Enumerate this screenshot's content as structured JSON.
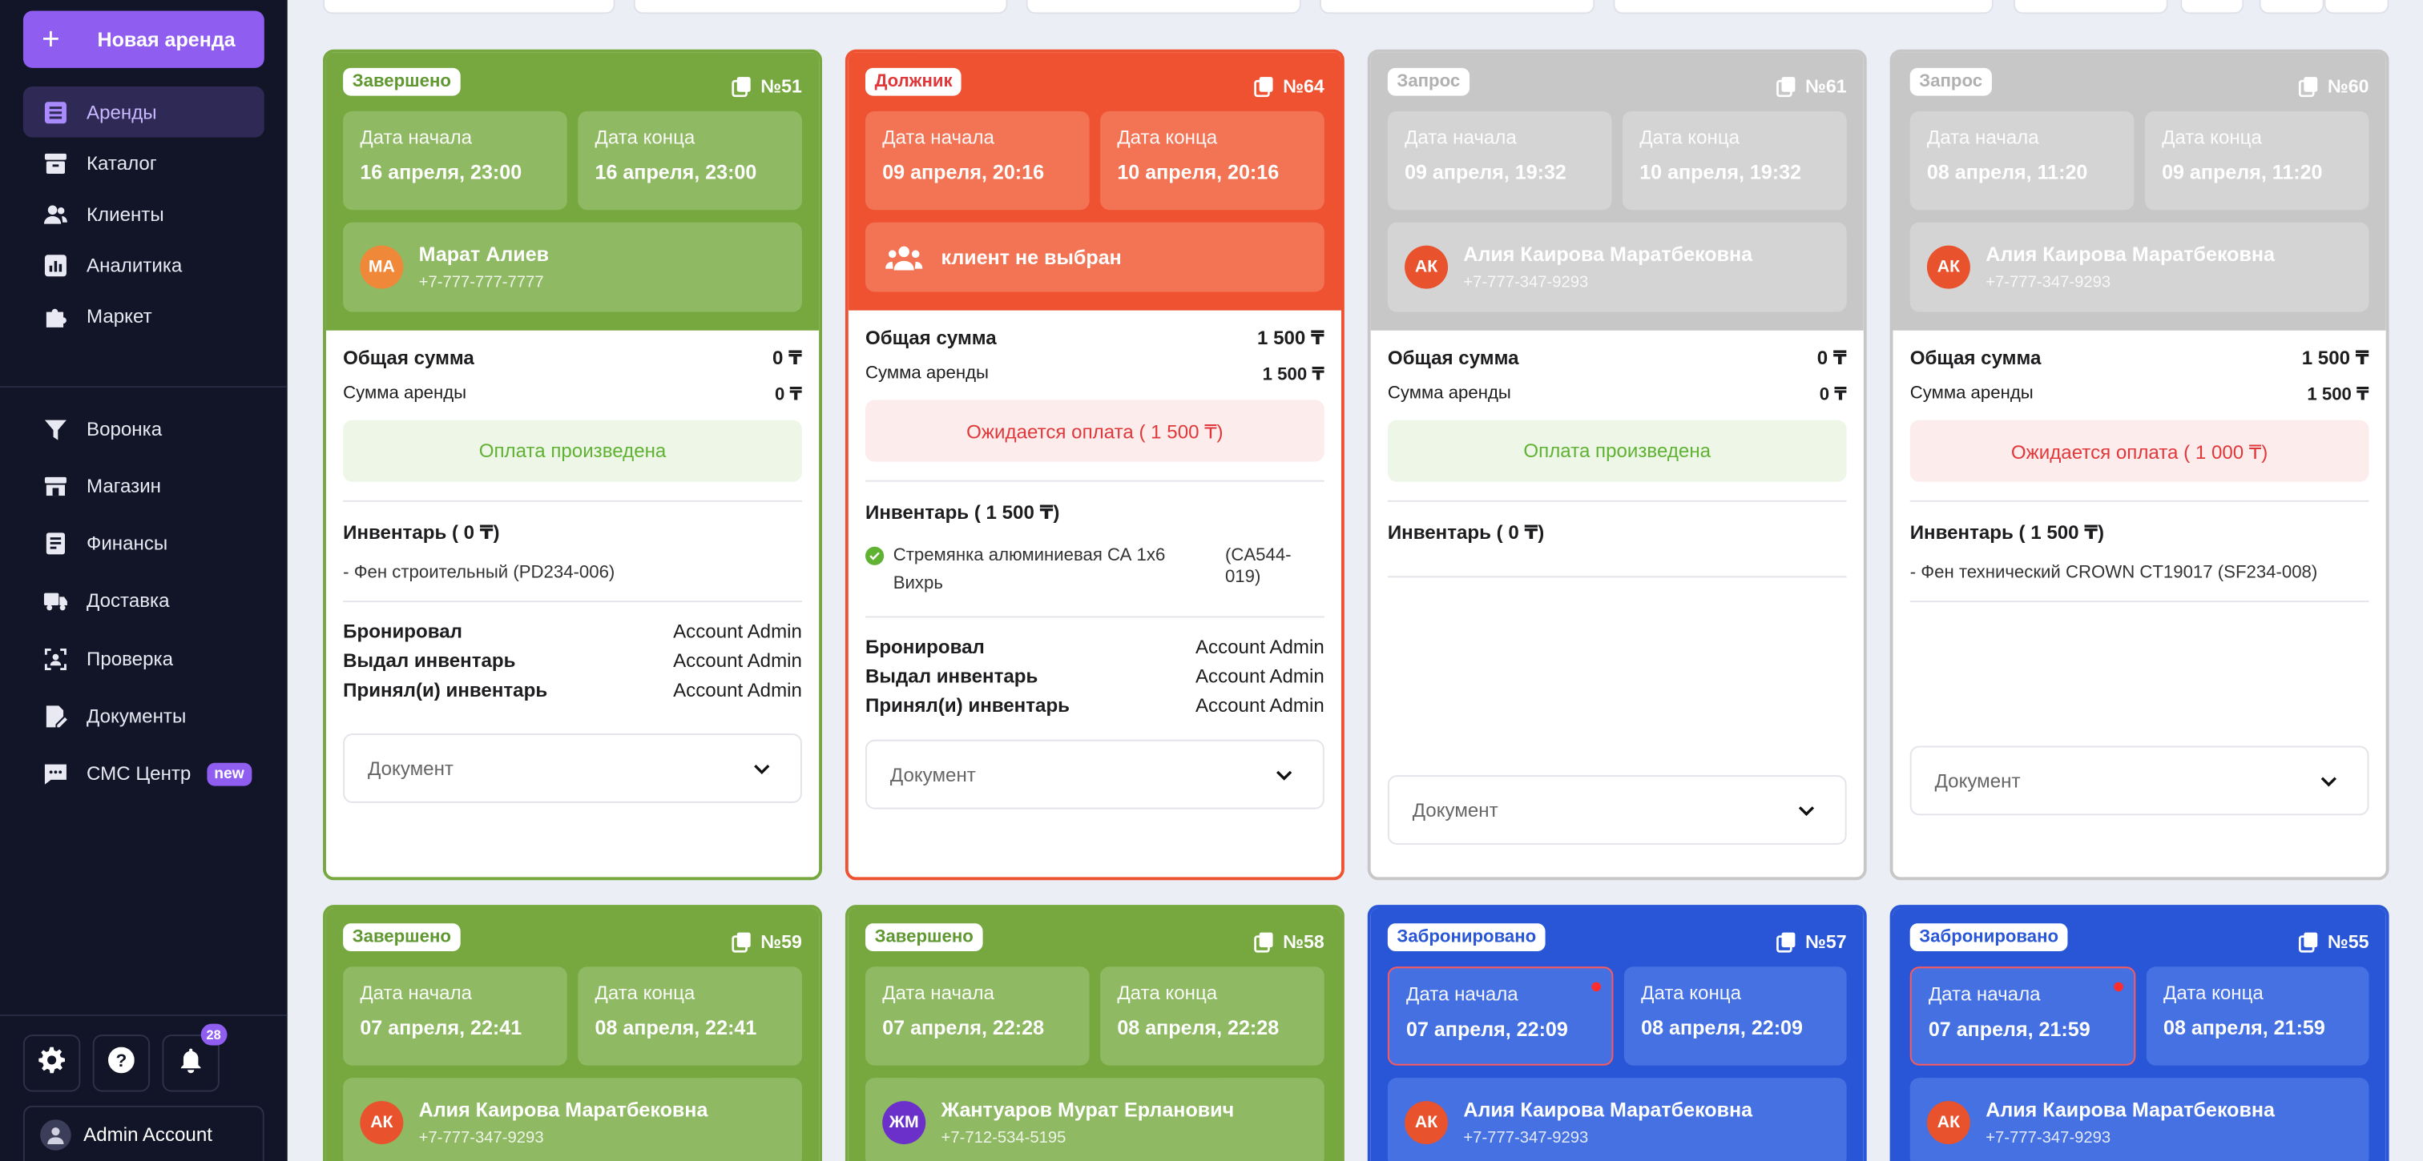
{
  "sidebar": {
    "new_button": "Новая аренда",
    "nav_main": [
      {
        "label": "Аренды",
        "icon": "list-icon",
        "active": true
      },
      {
        "label": "Каталог",
        "icon": "archive-icon"
      },
      {
        "label": "Клиенты",
        "icon": "users-icon"
      },
      {
        "label": "Аналитика",
        "icon": "chart-icon"
      },
      {
        "label": "Маркет",
        "icon": "puzzle-icon"
      }
    ],
    "nav_secondary": [
      {
        "label": "Воронка",
        "icon": "funnel-icon"
      },
      {
        "label": "Магазин",
        "icon": "store-icon"
      },
      {
        "label": "Финансы",
        "icon": "ledger-icon"
      },
      {
        "label": "Доставка",
        "icon": "truck-icon"
      },
      {
        "label": "Проверка",
        "icon": "scan-icon"
      },
      {
        "label": "Документы",
        "icon": "document-edit-icon"
      },
      {
        "label": "СМС Центр",
        "icon": "chat-icon",
        "badge": "new"
      }
    ],
    "notifications_count": "28",
    "account_name": "Admin Account"
  },
  "labels": {
    "start": "Дата начала",
    "end": "Дата конца",
    "total": "Общая сумма",
    "rent_sum": "Сумма аренды",
    "booked": "Бронировал",
    "issued": "Выдал инвентарь",
    "received": "Принял(и) инвентарь",
    "document": "Документ"
  },
  "cards": [
    {
      "status": "Завершено",
      "number": "№51",
      "start": "16 апреля, 23:00",
      "end": "16 апреля, 23:00",
      "client_initials": "МА",
      "client_name": "Марат Алиев",
      "client_phone": "+7-777-777-7777",
      "total": "0 ₸",
      "rent_sum": "0 ₸",
      "payment": "Оплата произведена",
      "inventory_title": "Инвентарь ( 0 ₸)",
      "inventory_item": "- Фен строительный (PD234-006)",
      "booked_by": "Account Admin",
      "issued_by": "Account Admin",
      "received_by": "Account Admin"
    },
    {
      "status": "Должник",
      "number": "№64",
      "start": "09 апреля, 20:16",
      "end": "10 апреля, 20:16",
      "client_placeholder": "клиент не выбран",
      "total": "1 500 ₸",
      "rent_sum": "1 500 ₸",
      "payment": "Ожидается оплата ( 1 500 ₸)",
      "inventory_title": "Инвентарь ( 1 500 ₸)",
      "inventory_item": "Стремянка алюминиевая СА 1х6 Вихрь",
      "inventory_code": "(CA544-019)",
      "booked_by": "Account Admin",
      "issued_by": "Account Admin",
      "received_by": "Account Admin"
    },
    {
      "status": "Запрос",
      "number": "№61",
      "start": "09 апреля, 19:32",
      "end": "10 апреля, 19:32",
      "client_initials": "АК",
      "client_name": "Алия Каирова Маратбековна",
      "client_phone": "+7-777-347-9293",
      "total": "0 ₸",
      "rent_sum": "0 ₸",
      "payment": "Оплата произведена",
      "inventory_title": "Инвентарь ( 0 ₸)"
    },
    {
      "status": "Запрос",
      "number": "№60",
      "start": "08 апреля, 11:20",
      "end": "09 апреля, 11:20",
      "client_initials": "АК",
      "client_name": "Алия Каирова Маратбековна",
      "client_phone": "+7-777-347-9293",
      "total": "1 500 ₸",
      "rent_sum": "1 500 ₸",
      "payment": "Ожидается оплата ( 1 000 ₸)",
      "inventory_title": "Инвентарь ( 1 500 ₸)",
      "inventory_item": "- Фен технический CROWN CT19017 (SF234-008)"
    },
    {
      "status": "Завершено",
      "number": "№59",
      "start": "07 апреля, 22:41",
      "end": "08 апреля, 22:41",
      "client_initials": "АК",
      "client_name": "Алия Каирова Маратбековна",
      "client_phone": "+7-777-347-9293"
    },
    {
      "status": "Завершено",
      "number": "№58",
      "start": "07 апреля, 22:28",
      "end": "08 апреля, 22:28",
      "client_initials": "ЖМ",
      "client_name": "Жантуаров Мурат Ерланович",
      "client_phone": "+7-712-534-5195"
    },
    {
      "status": "Забронировано",
      "number": "№57",
      "start": "07 апреля, 22:09",
      "end": "08 апреля, 22:09",
      "client_initials": "АК",
      "client_name": "Алия Каирова Маратбековна",
      "client_phone": "+7-777-347-9293"
    },
    {
      "status": "Забронировано",
      "number": "№55",
      "start": "07 апреля, 21:59",
      "end": "08 апреля, 21:59",
      "client_initials": "АК",
      "client_name": "Алия Каирова Маратбековна",
      "client_phone": "+7-777-347-9293"
    }
  ],
  "colors": {
    "accent": "#8f5df0",
    "completed": "#76a83f",
    "debtor": "#ee5231",
    "request": "#c7c7c7",
    "booked": "#2856d6",
    "avatar_orange": "#f0883a",
    "avatar_red": "#e8522c",
    "avatar_purple": "#6a30c9"
  }
}
